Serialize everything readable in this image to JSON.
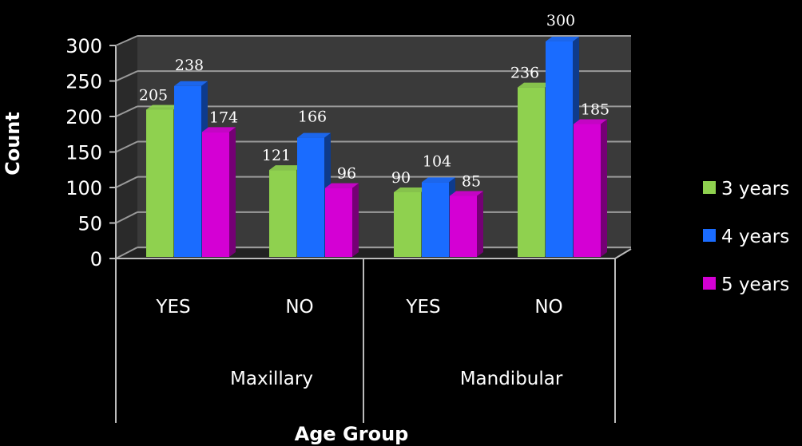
{
  "chart_data": {
    "type": "bar",
    "style": "3d-clustered-column",
    "title": "",
    "xlabel": "Age Group",
    "ylabel": "Count",
    "ylim": [
      0,
      300
    ],
    "yticks": [
      "0",
      "50",
      "100",
      "150",
      "200",
      "250",
      "300"
    ],
    "grid": true,
    "groups": [
      {
        "label": "Maxillary",
        "categories": [
          "YES",
          "NO"
        ]
      },
      {
        "label": "Mandibular",
        "categories": [
          "YES",
          "NO"
        ]
      }
    ],
    "categories": [
      "Maxillary YES",
      "Maxillary NO",
      "Mandibular YES",
      "Mandibular NO"
    ],
    "series": [
      {
        "name": "3 years",
        "color": "#8fd14f",
        "values": [
          205,
          121,
          90,
          236
        ]
      },
      {
        "name": "4 years",
        "color": "#1a6cff",
        "values": [
          238,
          166,
          104,
          300
        ]
      },
      {
        "name": "5 years",
        "color": "#d400d4",
        "values": [
          174,
          96,
          85,
          185
        ]
      }
    ],
    "legend": "right"
  }
}
